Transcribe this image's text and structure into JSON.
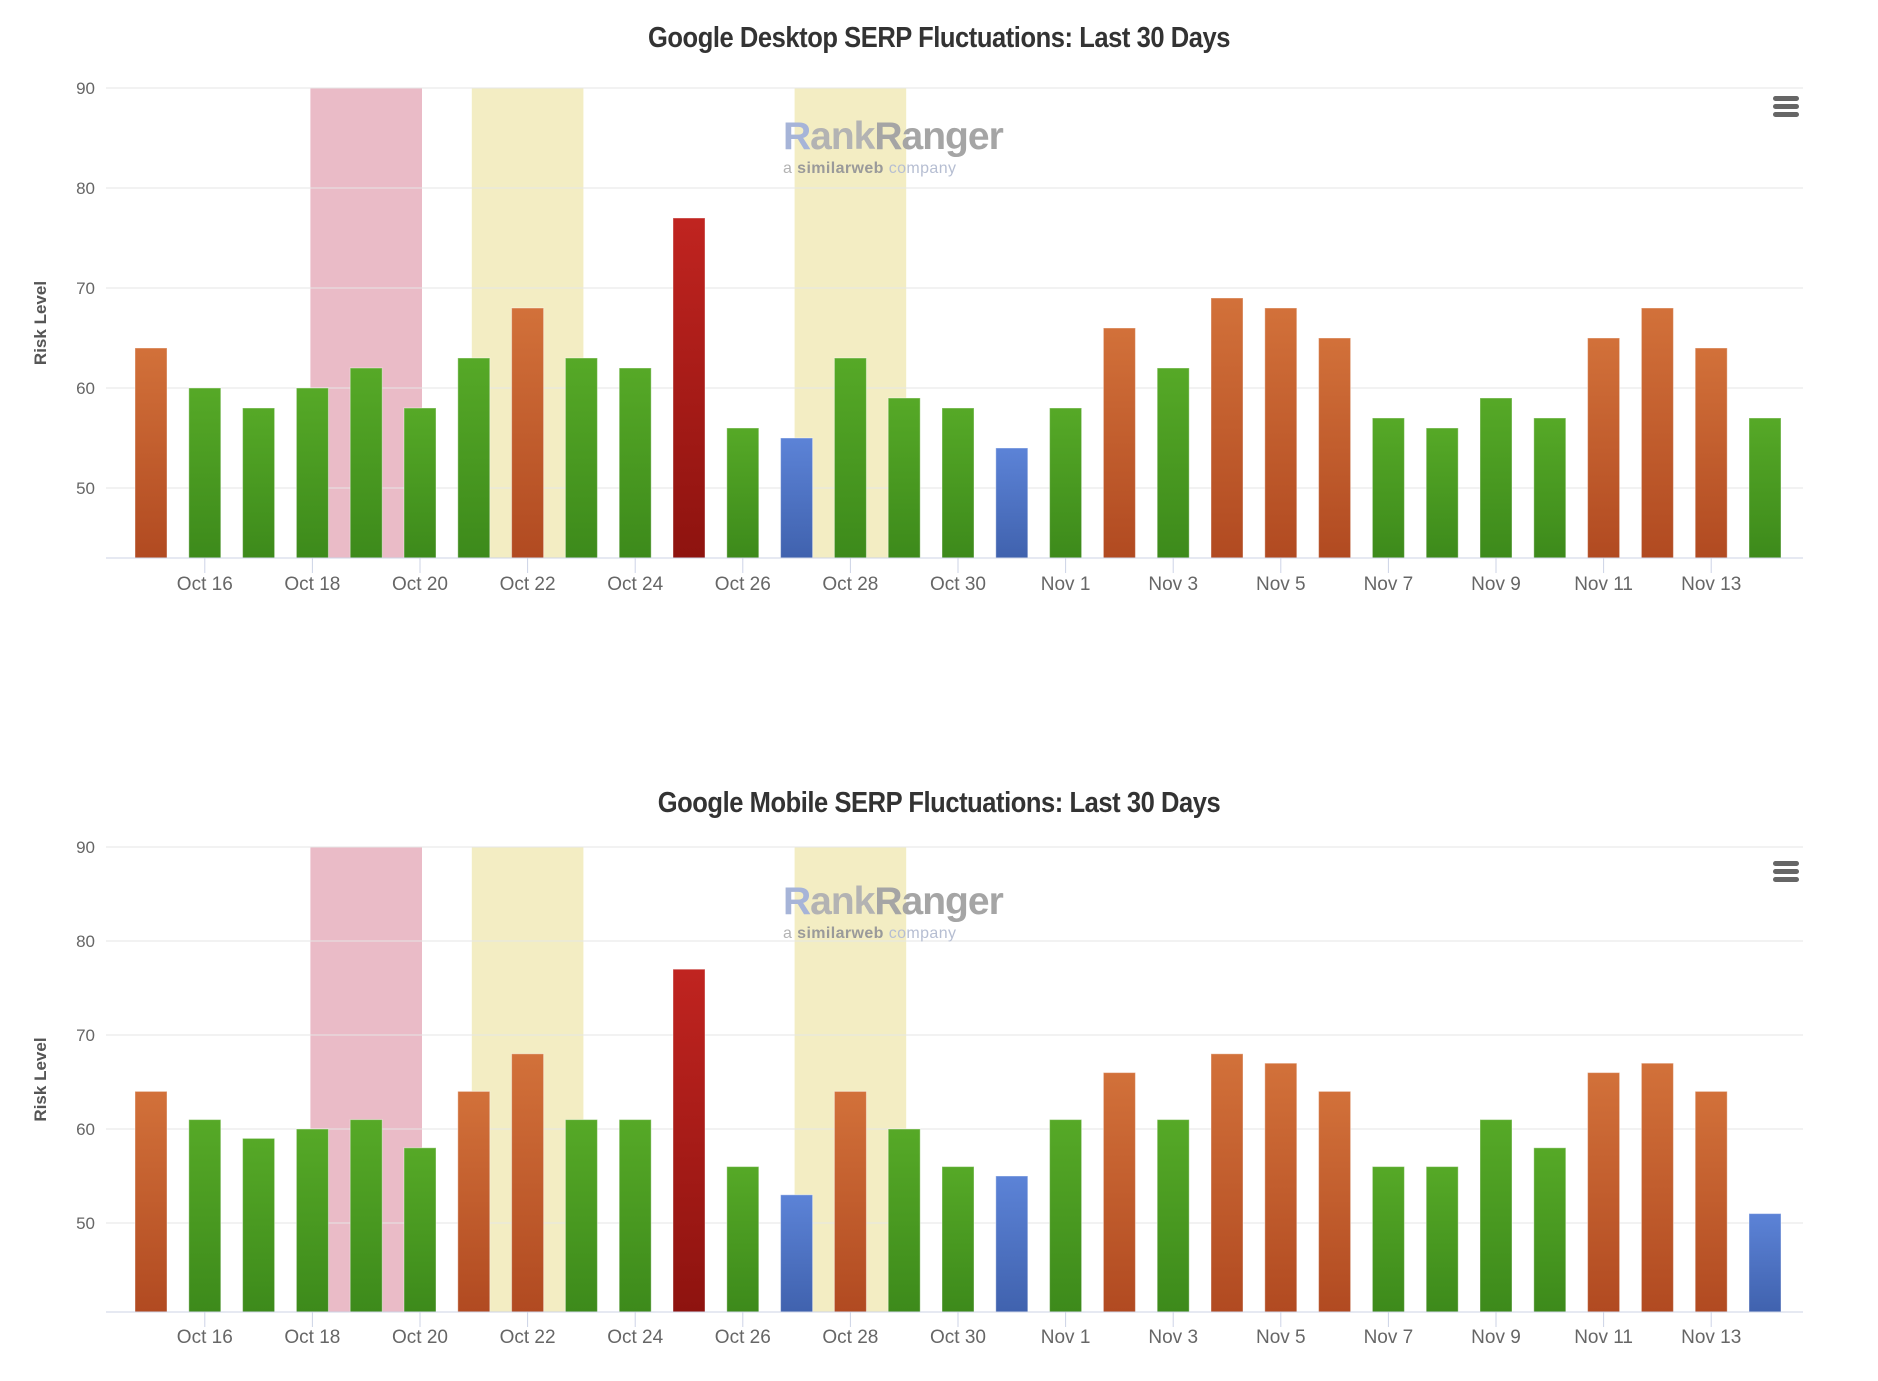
{
  "page": {
    "background": "#ffffff"
  },
  "export_menu": {
    "tooltip": "Chart context menu",
    "color": "#666666"
  },
  "watermark": {
    "brand_first_letter": "R",
    "brand_rest": "ank",
    "brand_second": "Ranger",
    "tagline_a": "a ",
    "tagline_bold": "similarweb",
    "tagline_rest": " company"
  },
  "palette": {
    "green": [
      "#56a927",
      "#3d8a1b"
    ],
    "orange": [
      "#d2713a",
      "#b14a21"
    ],
    "red": [
      "#c02420",
      "#8e130f"
    ],
    "blue": [
      "#5c83d7",
      "#4062ae"
    ],
    "pink_band": "#eabbc7",
    "yellow_band": "#f3edc3",
    "gridline": "#e6e6e6",
    "axis_line": "#ccd3e6",
    "title_color": "#333333",
    "tick_label_color": "#666666",
    "axis_title_color": "#555555",
    "watermark_blue": "#a6b4d8",
    "watermark_gray": "#b3b3b3",
    "watermark_gray_dark": "#a5a5a5",
    "watermark_tagline_gray": "#9a9a9a",
    "watermark_tagline_light": "#b6bed2"
  },
  "chart_data": [
    {
      "type": "bar",
      "title": "Google Desktop SERP Fluctuations: Last 30 Days",
      "xlabel": "",
      "ylabel": "Risk Level",
      "ylim": [
        43,
        90
      ],
      "yticks": [
        50,
        60,
        70,
        80,
        90
      ],
      "grid": true,
      "legend": "none",
      "categories": [
        "Oct 15",
        "Oct 16",
        "Oct 17",
        "Oct 18",
        "Oct 19",
        "Oct 20",
        "Oct 21",
        "Oct 22",
        "Oct 23",
        "Oct 24",
        "Oct 25",
        "Oct 26",
        "Oct 27",
        "Oct 28",
        "Oct 29",
        "Oct 30",
        "Oct 31",
        "Nov 1",
        "Nov 2",
        "Nov 3",
        "Nov 4",
        "Nov 5",
        "Nov 6",
        "Nov 7",
        "Nov 8",
        "Nov 9",
        "Nov 10",
        "Nov 11",
        "Nov 12",
        "Nov 13",
        "Nov 14"
      ],
      "values": [
        64,
        60,
        58,
        60,
        62,
        58,
        63,
        68,
        63,
        62,
        77,
        56,
        55,
        63,
        59,
        58,
        54,
        58,
        66,
        62,
        69,
        68,
        65,
        57,
        56,
        59,
        57,
        65,
        68,
        64,
        57
      ],
      "point_colors": [
        "orange",
        "green",
        "green",
        "green",
        "green",
        "green",
        "green",
        "orange",
        "green",
        "green",
        "red",
        "green",
        "blue",
        "green",
        "green",
        "green",
        "blue",
        "green",
        "orange",
        "green",
        "orange",
        "orange",
        "orange",
        "green",
        "green",
        "green",
        "green",
        "orange",
        "orange",
        "orange",
        "green"
      ],
      "xtick_labels": [
        "Oct 16",
        "Oct 18",
        "Oct 20",
        "Oct 22",
        "Oct 24",
        "Oct 26",
        "Oct 28",
        "Oct 30",
        "Nov 1",
        "Nov 3",
        "Nov 5",
        "Nov 7",
        "Nov 9",
        "Nov 11",
        "Nov 13"
      ],
      "plot_bands": [
        {
          "from": "Oct 18",
          "to": "Oct 20",
          "color_key": "pink_band"
        },
        {
          "from": "Oct 21",
          "to": "Oct 23",
          "color_key": "yellow_band"
        },
        {
          "from": "Oct 27",
          "to": "Oct 29",
          "color_key": "yellow_band"
        }
      ]
    },
    {
      "type": "bar",
      "title": "Google Mobile SERP Fluctuations: Last 30 Days",
      "xlabel": "",
      "ylabel": "Risk Level",
      "ylim": [
        42,
        90
      ],
      "yticks": [
        50,
        60,
        70,
        80,
        90
      ],
      "grid": true,
      "legend": "none",
      "categories": [
        "Oct 15",
        "Oct 16",
        "Oct 17",
        "Oct 18",
        "Oct 19",
        "Oct 20",
        "Oct 21",
        "Oct 22",
        "Oct 23",
        "Oct 24",
        "Oct 25",
        "Oct 26",
        "Oct 27",
        "Oct 28",
        "Oct 29",
        "Oct 30",
        "Oct 31",
        "Nov 1",
        "Nov 2",
        "Nov 3",
        "Nov 4",
        "Nov 5",
        "Nov 6",
        "Nov 7",
        "Nov 8",
        "Nov 9",
        "Nov 10",
        "Nov 11",
        "Nov 12",
        "Nov 13",
        "Nov 14"
      ],
      "values": [
        64,
        61,
        59,
        60,
        61,
        58,
        64,
        68,
        61,
        61,
        77,
        56,
        53,
        64,
        60,
        56,
        55,
        61,
        66,
        61,
        68,
        67,
        64,
        56,
        56,
        61,
        58,
        66,
        67,
        64,
        51
      ],
      "point_colors": [
        "orange",
        "green",
        "green",
        "green",
        "green",
        "green",
        "orange",
        "orange",
        "green",
        "green",
        "red",
        "green",
        "blue",
        "orange",
        "green",
        "green",
        "blue",
        "green",
        "orange",
        "green",
        "orange",
        "orange",
        "orange",
        "green",
        "green",
        "green",
        "green",
        "orange",
        "orange",
        "orange",
        "blue"
      ],
      "xtick_labels": [
        "Oct 16",
        "Oct 18",
        "Oct 20",
        "Oct 22",
        "Oct 24",
        "Oct 26",
        "Oct 28",
        "Oct 30",
        "Nov 1",
        "Nov 3",
        "Nov 5",
        "Nov 7",
        "Nov 9",
        "Nov 11",
        "Nov 13"
      ],
      "plot_bands": [
        {
          "from": "Oct 18",
          "to": "Oct 20",
          "color_key": "pink_band"
        },
        {
          "from": "Oct 21",
          "to": "Oct 23",
          "color_key": "yellow_band"
        },
        {
          "from": "Oct 27",
          "to": "Oct 29",
          "color_key": "yellow_band"
        }
      ]
    }
  ]
}
